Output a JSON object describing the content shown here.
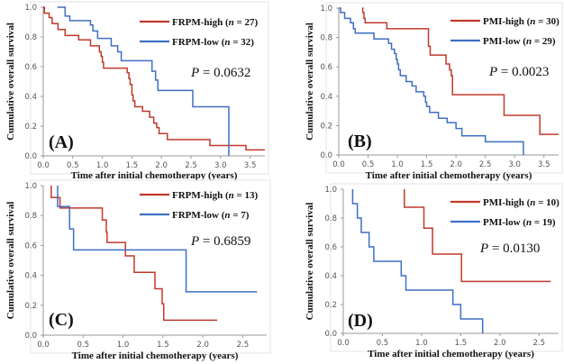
{
  "chart_data": [
    {
      "type": "line",
      "panel_label": "(A)",
      "xlabel": "Time after initial chemotherapy (years)",
      "ylabel": "Cumulative overall survival",
      "xlim": [
        0,
        3.75
      ],
      "ylim": [
        0,
        1.0
      ],
      "xticks": [
        "0.0",
        "0.5",
        "1.0",
        "1.5",
        "2.0",
        "2.5",
        "3.0",
        "3.5"
      ],
      "yticks": [
        "0.0",
        "0.2",
        "0.4",
        "0.6",
        "0.8",
        "1.0"
      ],
      "p_prefix": "P",
      "p_value": "= 0.0632",
      "series": [
        {
          "name": "FRPM-high",
          "n_label": "n",
          "n_value": "= 27)",
          "color": "#c0392b",
          "steps": [
            [
              0,
              1
            ],
            [
              0.02,
              0.96
            ],
            [
              0.1,
              0.93
            ],
            [
              0.15,
              0.89
            ],
            [
              0.25,
              0.85
            ],
            [
              0.37,
              0.81
            ],
            [
              0.6,
              0.78
            ],
            [
              0.8,
              0.74
            ],
            [
              0.95,
              0.7
            ],
            [
              0.98,
              0.67
            ],
            [
              1.0,
              0.63
            ],
            [
              1.02,
              0.59
            ],
            [
              1.42,
              0.56
            ],
            [
              1.45,
              0.52
            ],
            [
              1.47,
              0.48
            ],
            [
              1.5,
              0.41
            ],
            [
              1.52,
              0.37
            ],
            [
              1.55,
              0.33
            ],
            [
              1.68,
              0.3
            ],
            [
              1.8,
              0.26
            ],
            [
              1.87,
              0.22
            ],
            [
              1.92,
              0.19
            ],
            [
              1.96,
              0.15
            ],
            [
              2.1,
              0.11
            ],
            [
              2.82,
              0.07
            ],
            [
              3.43,
              0.04
            ]
          ],
          "end": 3.75
        },
        {
          "name": "FRPM-low",
          "n_label": "n",
          "n_value": "= 32)",
          "color": "#3f6fc4",
          "steps": [
            [
              0.24,
              1
            ],
            [
              0.37,
              0.94
            ],
            [
              0.45,
              0.91
            ],
            [
              0.8,
              0.88
            ],
            [
              0.84,
              0.84
            ],
            [
              0.92,
              0.79
            ],
            [
              1.15,
              0.74
            ],
            [
              1.26,
              0.7
            ],
            [
              1.32,
              0.64
            ],
            [
              1.84,
              0.57
            ],
            [
              1.9,
              0.51
            ],
            [
              1.94,
              0.44
            ],
            [
              2.53,
              0.33
            ],
            [
              3.14,
              0.0
            ]
          ],
          "end": 3.14
        }
      ]
    },
    {
      "type": "line",
      "panel_label": "(B)",
      "xlabel": "Time after initial chemotherapy (years)",
      "ylabel": "Cumulative overall survival",
      "xlim": [
        0,
        3.75
      ],
      "ylim": [
        0,
        1.0
      ],
      "xticks": [
        "0.0",
        "0.5",
        "1.0",
        "1.5",
        "2.0",
        "2.5",
        "3.0",
        "3.5"
      ],
      "yticks": [
        "0.0",
        "0.2",
        "0.4",
        "0.6",
        "0.8",
        "1.0"
      ],
      "p_prefix": "P",
      "p_value": "= 0.0023",
      "series": [
        {
          "name": "PMI-high",
          "n_label": "n",
          "n_value": "= 30)",
          "color": "#c0392b",
          "steps": [
            [
              0.4,
              1
            ],
            [
              0.41,
              0.97
            ],
            [
              0.43,
              0.93
            ],
            [
              0.45,
              0.9
            ],
            [
              0.82,
              0.86
            ],
            [
              1.53,
              0.74
            ],
            [
              1.56,
              0.68
            ],
            [
              1.83,
              0.62
            ],
            [
              1.89,
              0.58
            ],
            [
              1.92,
              0.54
            ],
            [
              1.94,
              0.41
            ],
            [
              2.82,
              0.27
            ],
            [
              3.43,
              0.14
            ]
          ],
          "end": 3.75
        },
        {
          "name": "PMI-low",
          "n_label": "n",
          "n_value": "= 29)",
          "color": "#3f6fc4",
          "steps": [
            [
              0,
              1
            ],
            [
              0.03,
              0.97
            ],
            [
              0.1,
              0.93
            ],
            [
              0.2,
              0.9
            ],
            [
              0.25,
              0.86
            ],
            [
              0.28,
              0.83
            ],
            [
              0.6,
              0.79
            ],
            [
              0.85,
              0.76
            ],
            [
              0.9,
              0.72
            ],
            [
              0.95,
              0.69
            ],
            [
              0.98,
              0.65
            ],
            [
              1.0,
              0.62
            ],
            [
              1.02,
              0.58
            ],
            [
              1.05,
              0.54
            ],
            [
              1.15,
              0.5
            ],
            [
              1.25,
              0.47
            ],
            [
              1.32,
              0.43
            ],
            [
              1.45,
              0.4
            ],
            [
              1.48,
              0.36
            ],
            [
              1.5,
              0.33
            ],
            [
              1.55,
              0.29
            ],
            [
              1.7,
              0.25
            ],
            [
              1.85,
              0.22
            ],
            [
              2.0,
              0.18
            ],
            [
              2.1,
              0.13
            ],
            [
              2.5,
              0.09
            ],
            [
              3.15,
              0.0
            ]
          ],
          "end": 3.15
        }
      ]
    },
    {
      "type": "line",
      "panel_label": "(C)",
      "xlabel": "Time after initial chemotherapy (years)",
      "ylabel": "Cumulative overall survival",
      "xlim": [
        0,
        2.8
      ],
      "ylim": [
        0,
        1.0
      ],
      "xticks": [
        "0.0",
        "0.5",
        "1.0",
        "1.5",
        "2.0",
        "2.5"
      ],
      "yticks": [
        "0.0",
        "0.2",
        "0.4",
        "0.6",
        "0.8",
        "1.0"
      ],
      "p_prefix": "P",
      "p_value": "= 0.6859",
      "series": [
        {
          "name": "FRPM-high",
          "n_label": "n",
          "n_value": "= 13)",
          "color": "#c0392b",
          "steps": [
            [
              0.1,
              1
            ],
            [
              0.1,
              0.92
            ],
            [
              0.21,
              0.85
            ],
            [
              0.74,
              0.77
            ],
            [
              0.79,
              0.69
            ],
            [
              0.8,
              0.62
            ],
            [
              1.03,
              0.53
            ],
            [
              1.14,
              0.42
            ],
            [
              1.4,
              0.31
            ],
            [
              1.49,
              0.21
            ],
            [
              1.51,
              0.1
            ]
          ],
          "end": 2.18
        },
        {
          "name": "FRPM-low",
          "n_label": "n",
          "n_value": "= 7)",
          "color": "#3f6fc4",
          "steps": [
            [
              0.18,
              1
            ],
            [
              0.18,
              0.86
            ],
            [
              0.33,
              0.71
            ],
            [
              0.38,
              0.57
            ],
            [
              1.79,
              0.29
            ]
          ],
          "end": 2.68
        }
      ]
    },
    {
      "type": "line",
      "panel_label": "(D)",
      "xlabel": "Time after initial chemotherapy (years)",
      "ylabel": "Cumulative overall survival",
      "xlim": [
        0,
        2.75
      ],
      "ylim": [
        0,
        1.0
      ],
      "xticks": [
        "0.0",
        "0.5",
        "1.0",
        "1.5",
        "2.0",
        "2.5"
      ],
      "yticks": [
        "0.0",
        "0.2",
        "0.4",
        "0.6",
        "0.8",
        "1.0"
      ],
      "p_prefix": "P",
      "p_value": "= 0.0130",
      "series": [
        {
          "name": "PMI-high",
          "n_label": "n",
          "n_value": "= 10)",
          "color": "#c0392b",
          "steps": [
            [
              0.78,
              1
            ],
            [
              0.78,
              0.875
            ],
            [
              1.03,
              0.73
            ],
            [
              1.14,
              0.55
            ],
            [
              1.51,
              0.36
            ]
          ],
          "end": 2.65
        },
        {
          "name": "PMI-low",
          "n_label": "n",
          "n_value": "= 19)",
          "color": "#3f6fc4",
          "steps": [
            [
              0.12,
              1
            ],
            [
              0.12,
              0.9
            ],
            [
              0.18,
              0.8
            ],
            [
              0.23,
              0.7
            ],
            [
              0.33,
              0.6
            ],
            [
              0.39,
              0.5
            ],
            [
              0.74,
              0.4
            ],
            [
              0.8,
              0.3
            ],
            [
              1.4,
              0.2
            ],
            [
              1.5,
              0.1
            ],
            [
              1.78,
              0.0
            ]
          ],
          "end": 1.78
        }
      ]
    }
  ]
}
